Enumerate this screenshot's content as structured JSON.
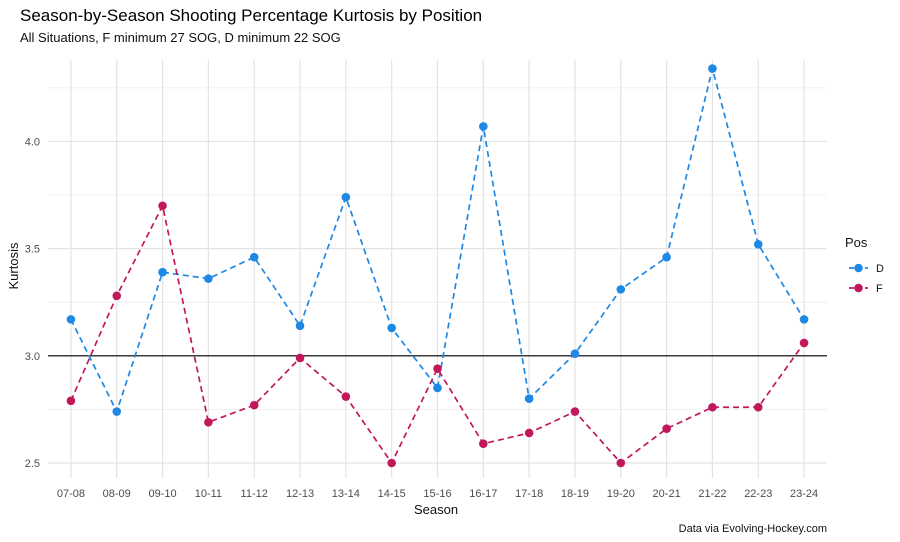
{
  "chart_data": {
    "type": "line",
    "title": "Season-by-Season Shooting Percentage Kurtosis by Position",
    "subtitle": "All Situations, F minimum 27 SOG, D minimum 22 SOG",
    "xlabel": "Season",
    "ylabel": "Kurtosis",
    "caption": "Data via Evolving-Hockey.com",
    "categories": [
      "07-08",
      "08-09",
      "09-10",
      "10-11",
      "11-12",
      "12-13",
      "13-14",
      "14-15",
      "15-16",
      "16-17",
      "17-18",
      "18-19",
      "19-20",
      "20-21",
      "21-22",
      "22-23",
      "23-24"
    ],
    "ylim": [
      2.43,
      4.38
    ],
    "yticks": [
      2.5,
      3.0,
      3.5,
      4.0
    ],
    "ytick_labels": [
      "2.5",
      "3.0",
      "3.5",
      "4.0"
    ],
    "reference_line": 3.0,
    "grid": true,
    "legend": {
      "title": "Pos",
      "position": "right"
    },
    "series": [
      {
        "name": "D",
        "color": "#1e88e5",
        "values": [
          3.17,
          2.74,
          3.39,
          3.36,
          3.46,
          3.14,
          3.74,
          3.13,
          2.85,
          4.07,
          2.8,
          3.01,
          3.31,
          3.46,
          4.34,
          3.52,
          3.17
        ]
      },
      {
        "name": "F",
        "color": "#c2185b",
        "values": [
          2.79,
          3.28,
          3.7,
          2.69,
          2.77,
          2.99,
          2.81,
          2.5,
          2.94,
          2.59,
          2.64,
          2.74,
          2.5,
          2.66,
          2.76,
          2.76,
          3.06
        ]
      }
    ]
  }
}
